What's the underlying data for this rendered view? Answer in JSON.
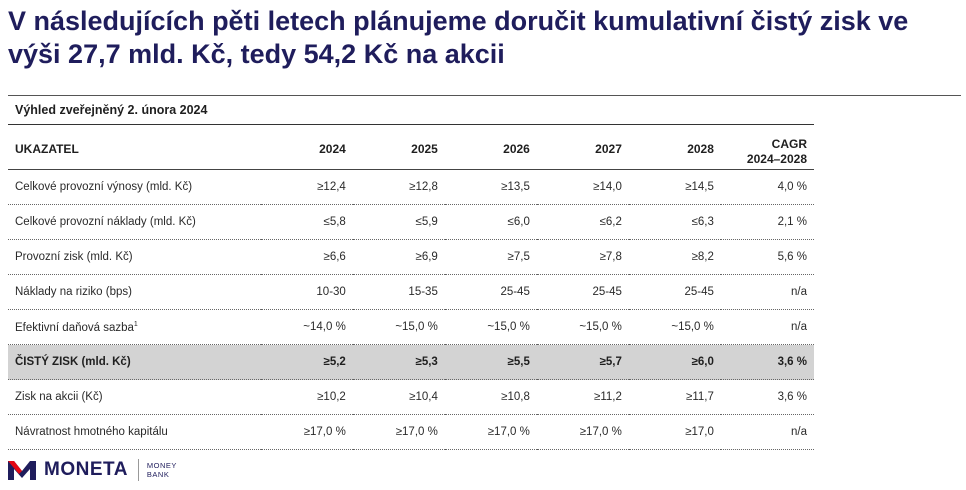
{
  "title": "V následujících pěti letech plánujeme doručit kumulativní čistý zisk ve výši 27,7 mld. Kč, tedy 54,2 Kč na akcii",
  "subtitle": "Výhled zveřejněný 2. února 2024",
  "table": {
    "headers": [
      "UKAZATEL",
      "2024",
      "2025",
      "2026",
      "2027",
      "2028"
    ],
    "cagr_header": [
      "CAGR",
      "2024–2028"
    ],
    "rows": [
      {
        "label": "Celkové provozní výnosy (mld. Kč)",
        "values": [
          "≥12,4",
          "≥12,8",
          "≥13,5",
          "≥14,0",
          "≥14,5",
          "4,0 %"
        ]
      },
      {
        "label": "Celkové provozní náklady (mld. Kč)",
        "values": [
          "≤5,8",
          "≤5,9",
          "≤6,0",
          "≤6,2",
          "≤6,3",
          "2,1 %"
        ]
      },
      {
        "label": "Provozní zisk (mld. Kč)",
        "values": [
          "≥6,6",
          "≥6,9",
          "≥7,5",
          "≥7,8",
          "≥8,2",
          "5,6 %"
        ]
      },
      {
        "label": "Náklady na riziko (bps)",
        "values": [
          "10-30",
          "15-35",
          "25-45",
          "25-45",
          "25-45",
          "n/a"
        ]
      },
      {
        "label": "Efektivní daňová sazba",
        "footnote": "1",
        "values": [
          "~14,0 %",
          "~15,0 %",
          "~15,0 %",
          "~15,0 %",
          "~15,0 %",
          "n/a"
        ]
      },
      {
        "label": "ČISTÝ ZISK (mld. Kč)",
        "highlight": true,
        "values": [
          "≥5,2",
          "≥5,3",
          "≥5,5",
          "≥5,7",
          "≥6,0",
          "3,6 %"
        ]
      },
      {
        "label": "Zisk na akcii (Kč)",
        "values": [
          "≥10,2",
          "≥10,4",
          "≥10,8",
          "≥11,2",
          "≥11,7",
          "3,6 %"
        ]
      },
      {
        "label": "Návratnost hmotného kapitálu",
        "values": [
          "≥17,0 %",
          "≥17,0 %",
          "≥17,0 %",
          "≥17,0 %",
          "≥17,0",
          "n/a"
        ]
      }
    ]
  },
  "logo": {
    "name": "MONETA",
    "sub_line1": "MONEY",
    "sub_line2": "BANK",
    "color": "#1f1d5c",
    "accent": "#e30613"
  }
}
